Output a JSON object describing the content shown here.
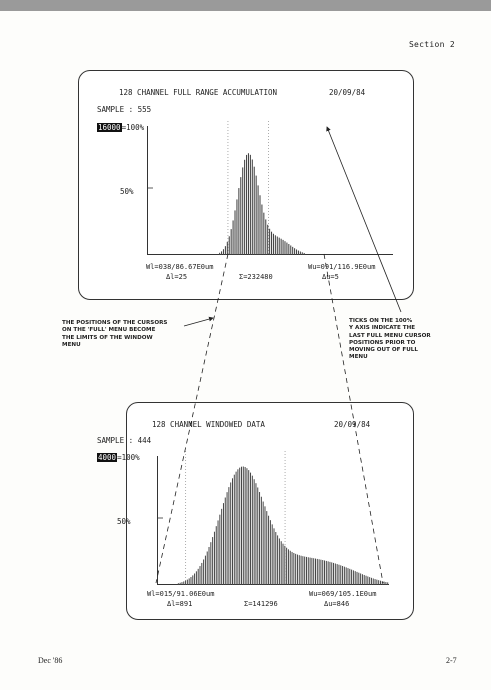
{
  "header": {
    "section": "Section 2"
  },
  "screen1": {
    "title": "128 CHANNEL FULL RANGE ACCUMULATION",
    "date": "20/09/84",
    "sample": "SAMPLE : 555",
    "scale_box": "16000",
    "scale_pct": "=100%",
    "half_label": "50%",
    "wl": "Wl=038/86.67E0um",
    "wu": "Wu=091/116.9E0um",
    "dl": "Δl=25",
    "sigma": "Σ=232480",
    "du": "Δu=5"
  },
  "screen2": {
    "title": "128 CHANNEL WINDOWED DATA",
    "date": "20/09/84",
    "sample": "SAMPLE : 444",
    "scale_box": "4000",
    "scale_pct": "=100%",
    "half_label": "50%",
    "wl": "Wl=015/91.06E0um",
    "wu": "Wu=069/105.1E0um",
    "dl": "Δl=891",
    "sigma": "Σ=141296",
    "du": "Δu=846"
  },
  "notes": {
    "left": [
      "THE POSITIONS OF THE CURSORS",
      "ON THE 'FULL' MENU BECOME",
      "THE LIMITS OF THE WINDOW",
      "MENU"
    ],
    "right": [
      "TICKS ON THE 100%",
      "Y AXIS INDICATE THE",
      "LAST FULL MENU CURSOR",
      "POSITIONS PRIOR TO",
      "MOVING OUT OF FULL",
      "MENU"
    ]
  },
  "footer": {
    "left": "Dec '86",
    "right": "2-7"
  },
  "colors": {
    "ink": "#222222",
    "bar": "#444444",
    "page": "#fdfdfb"
  }
}
